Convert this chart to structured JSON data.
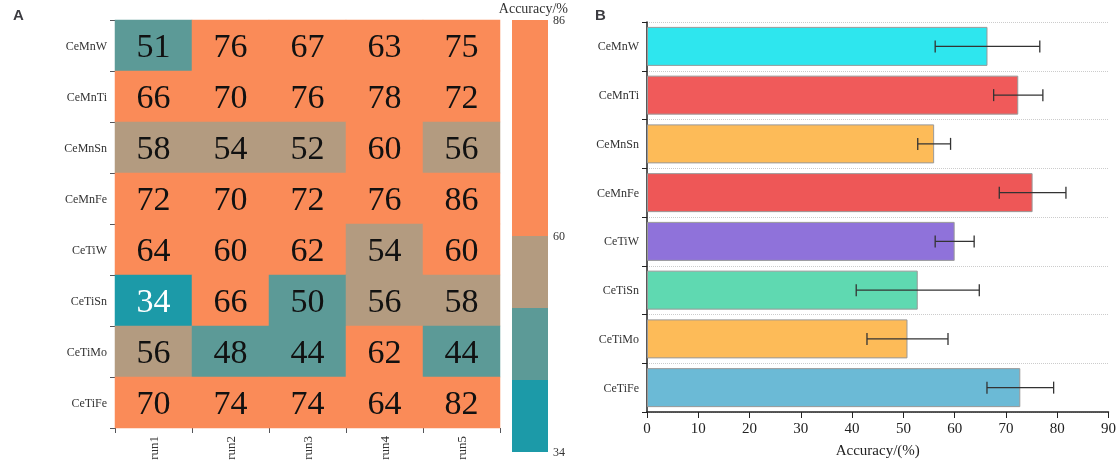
{
  "chart_data": [
    {
      "type": "heatmap",
      "title": "A",
      "clabel": "Accuracy/%",
      "categories": [
        "run1",
        "run2",
        "run3",
        "run4",
        "run5"
      ],
      "y_categories": [
        "CeMnW",
        "CeMnTi",
        "CeMnSn",
        "CeMnFe",
        "CeTiW",
        "CeTiSn",
        "CeTiMo",
        "CeTiFe"
      ],
      "cells": [
        [
          51,
          76,
          67,
          63,
          75
        ],
        [
          66,
          70,
          76,
          78,
          72
        ],
        [
          58,
          54,
          52,
          60,
          56
        ],
        [
          72,
          70,
          72,
          76,
          86
        ],
        [
          64,
          60,
          62,
          54,
          60
        ],
        [
          34,
          66,
          50,
          56,
          58
        ],
        [
          56,
          48,
          44,
          62,
          44
        ],
        [
          70,
          74,
          74,
          64,
          82
        ]
      ],
      "clim": [
        34,
        86
      ],
      "cticks": [
        34,
        {
          "value": 42.67,
          "label": null
        },
        {
          "value": 51.33,
          "label": null
        },
        60,
        86
      ],
      "colors": [
        "#1c9aa8",
        "#5c9a97",
        "#b39b80",
        "#fa8b58"
      ],
      "data_labels": true
    },
    {
      "type": "bar",
      "orientation": "horizontal",
      "title": "B",
      "xlabel": "Accuracy/(%)",
      "categories": [
        "CeMnW",
        "CeMnTi",
        "CeMnSn",
        "CeMnFe",
        "CeTiW",
        "CeTiSn",
        "CeTiMo",
        "CeTiFe"
      ],
      "values": [
        66.4,
        72.4,
        56,
        75.2,
        60,
        52.8,
        50.8,
        72.8
      ],
      "errors": [
        10.2,
        4.8,
        3.2,
        6.5,
        3.8,
        12,
        7.9,
        6.5
      ],
      "colors": [
        "#2ee6ee",
        "#f05a5a",
        "#fdbb58",
        "#ee5757",
        "#8f72da",
        "#5fd9b1",
        "#fdbb58",
        "#6bbad6"
      ],
      "xlim": [
        0,
        90
      ],
      "xticks": [
        0,
        10,
        20,
        30,
        40,
        50,
        60,
        70,
        80,
        90
      ],
      "grid": "y"
    }
  ]
}
